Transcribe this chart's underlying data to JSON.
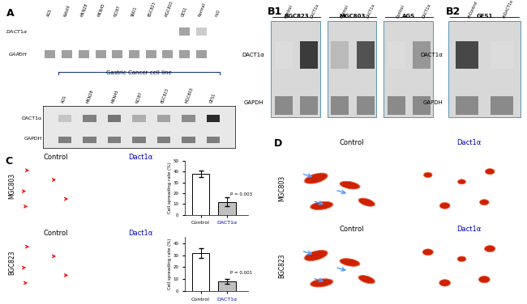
{
  "panel_A_label": "A",
  "panel_B1_label": "B1",
  "panel_B2_label": "B2",
  "panel_C_label": "C",
  "panel_D_label": "D",
  "gastric_cancer_label": "Gastric Cancer cell line",
  "rt_pcr_samples": [
    "AGS",
    "KatoIII",
    "MKN28",
    "MKN45",
    "NCI87",
    "SNU1",
    "BGC823",
    "MGC803",
    "GES1",
    "Normal",
    "H₂O"
  ],
  "wb_samples_A": [
    "AGS",
    "MKN28",
    "MKN45",
    "NCI87",
    "BGC823",
    "MGC803",
    "GES1"
  ],
  "B1_cell_lines": [
    "BGC823",
    "MGC803",
    "AGS"
  ],
  "B1_conditions": [
    "Control",
    "DACT1α"
  ],
  "B2_cell_line": "GES1",
  "B2_conditions": [
    "shControl",
    "shDACT1α"
  ],
  "mgc803_control_value": 38,
  "mgc803_dact1a_value": 12,
  "mgc803_control_err": 3,
  "mgc803_dact1a_err": 4,
  "mgc803_pvalue": "P = 0.003",
  "bgc823_control_value": 32,
  "bgc823_dact1a_value": 8,
  "bgc823_control_err": 4,
  "bgc823_dact1a_err": 2,
  "bgc823_pvalue": "P = 0.001",
  "bar_colors": [
    "#ffffff",
    "#c0c0c0"
  ],
  "bar_edge_color": "#000000",
  "dact1a_color_blue": "#0000bb",
  "bracket_color": "#1a3a8a",
  "gel_bg": "#111111",
  "wb_bg": "#e8e8e8",
  "rt_pcr_dact1a_bands": [
    false,
    false,
    false,
    false,
    false,
    false,
    false,
    false,
    true,
    true,
    false
  ],
  "rt_pcr_gapdh_bands": [
    true,
    true,
    true,
    true,
    true,
    true,
    true,
    true,
    true,
    true,
    false
  ],
  "wb_dact1a_intensities": [
    0.25,
    0.55,
    0.6,
    0.35,
    0.4,
    0.5,
    0.92
  ],
  "wb_gapdh_intensities": [
    0.72,
    0.72,
    0.72,
    0.72,
    0.72,
    0.72,
    0.72
  ],
  "b1_dact1a_intensities": [
    0.15,
    0.85,
    0.3,
    0.75,
    0.15,
    0.45
  ],
  "b1_gapdh_intensities": [
    0.65,
    0.65,
    0.65,
    0.65,
    0.65,
    0.65
  ],
  "b2_dact1a_intensities": [
    0.8,
    0.15
  ],
  "b2_gapdh_intensities": [
    0.65,
    0.65
  ]
}
